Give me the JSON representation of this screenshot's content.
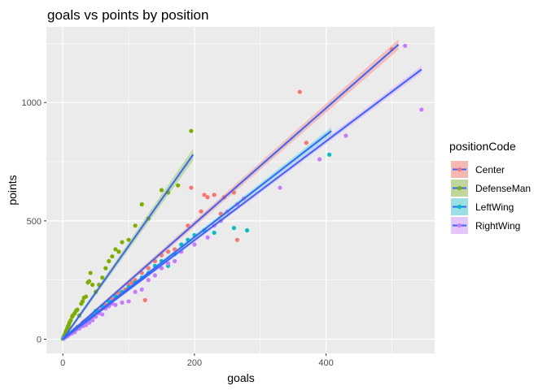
{
  "chart_data": {
    "type": "scatter",
    "title": "goals vs points by position",
    "xlabel": "goals",
    "ylabel": "points",
    "xlim": [
      -25,
      565
    ],
    "ylim": [
      -60,
      1320
    ],
    "xticks": [
      0,
      200,
      400
    ],
    "yticks": [
      0,
      500,
      1000
    ],
    "x_tick_labels": [
      "0",
      "200",
      "400"
    ],
    "y_tick_labels": [
      "0",
      "500",
      "1000"
    ],
    "grid": true,
    "background": "#ebebeb",
    "legend": {
      "title": "positionCode",
      "position": "right"
    },
    "trend_line_color": "#3366ff",
    "series": [
      {
        "name": "Center",
        "color": "#f8766d",
        "band_color": "#f5b8b2",
        "fit": {
          "x": [
            0,
            510
          ],
          "y": [
            0,
            1245
          ],
          "band": 22
        },
        "points": [
          [
            2,
            5
          ],
          [
            4,
            10
          ],
          [
            6,
            12
          ],
          [
            8,
            18
          ],
          [
            10,
            22
          ],
          [
            12,
            25
          ],
          [
            15,
            33
          ],
          [
            18,
            42
          ],
          [
            20,
            45
          ],
          [
            22,
            52
          ],
          [
            25,
            55
          ],
          [
            28,
            62
          ],
          [
            30,
            70
          ],
          [
            32,
            75
          ],
          [
            35,
            80
          ],
          [
            38,
            86
          ],
          [
            40,
            88
          ],
          [
            45,
            95
          ],
          [
            50,
            110
          ],
          [
            55,
            120
          ],
          [
            60,
            130
          ],
          [
            65,
            145
          ],
          [
            70,
            160
          ],
          [
            75,
            170
          ],
          [
            80,
            185
          ],
          [
            85,
            195
          ],
          [
            90,
            200
          ],
          [
            95,
            210
          ],
          [
            100,
            230
          ],
          [
            105,
            240
          ],
          [
            110,
            250
          ],
          [
            120,
            280
          ],
          [
            125,
            165
          ],
          [
            130,
            300
          ],
          [
            140,
            330
          ],
          [
            150,
            355
          ],
          [
            160,
            370
          ],
          [
            170,
            380
          ],
          [
            180,
            400
          ],
          [
            190,
            480
          ],
          [
            195,
            640
          ],
          [
            210,
            540
          ],
          [
            215,
            610
          ],
          [
            220,
            600
          ],
          [
            230,
            610
          ],
          [
            240,
            530
          ],
          [
            245,
            600
          ],
          [
            260,
            620
          ],
          [
            265,
            420
          ],
          [
            360,
            1045
          ],
          [
            370,
            830
          ],
          [
            500,
            1225
          ]
        ]
      },
      {
        "name": "DefenseMan",
        "color": "#7cae00",
        "band_color": "#bfd79d",
        "fit": {
          "x": [
            0,
            198
          ],
          "y": [
            0,
            780
          ],
          "band": 25
        },
        "points": [
          [
            0,
            2
          ],
          [
            1,
            8
          ],
          [
            2,
            15
          ],
          [
            3,
            20
          ],
          [
            4,
            28
          ],
          [
            5,
            35
          ],
          [
            6,
            40
          ],
          [
            7,
            48
          ],
          [
            8,
            55
          ],
          [
            9,
            60
          ],
          [
            10,
            70
          ],
          [
            12,
            80
          ],
          [
            14,
            95
          ],
          [
            15,
            100
          ],
          [
            18,
            110
          ],
          [
            20,
            120
          ],
          [
            22,
            125
          ],
          [
            25,
            100
          ],
          [
            28,
            150
          ],
          [
            30,
            160
          ],
          [
            32,
            175
          ],
          [
            35,
            180
          ],
          [
            38,
            240
          ],
          [
            40,
            245
          ],
          [
            42,
            280
          ],
          [
            45,
            230
          ],
          [
            50,
            200
          ],
          [
            55,
            230
          ],
          [
            60,
            260
          ],
          [
            65,
            300
          ],
          [
            70,
            330
          ],
          [
            75,
            350
          ],
          [
            80,
            380
          ],
          [
            85,
            370
          ],
          [
            90,
            410
          ],
          [
            100,
            420
          ],
          [
            110,
            480
          ],
          [
            120,
            570
          ],
          [
            130,
            510
          ],
          [
            150,
            630
          ],
          [
            160,
            620
          ],
          [
            175,
            650
          ],
          [
            195,
            880
          ]
        ]
      },
      {
        "name": "LeftWing",
        "color": "#00bfc4",
        "band_color": "#99dfe4",
        "fit": {
          "x": [
            0,
            408
          ],
          "y": [
            0,
            880
          ],
          "band": 15
        },
        "points": [
          [
            1,
            3
          ],
          [
            3,
            8
          ],
          [
            5,
            12
          ],
          [
            8,
            18
          ],
          [
            10,
            25
          ],
          [
            14,
            30
          ],
          [
            18,
            38
          ],
          [
            22,
            50
          ],
          [
            26,
            55
          ],
          [
            30,
            60
          ],
          [
            35,
            70
          ],
          [
            40,
            85
          ],
          [
            45,
            100
          ],
          [
            50,
            120
          ],
          [
            55,
            115
          ],
          [
            60,
            140
          ],
          [
            70,
            160
          ],
          [
            80,
            180
          ],
          [
            90,
            200
          ],
          [
            100,
            220
          ],
          [
            110,
            240
          ],
          [
            120,
            260
          ],
          [
            130,
            280
          ],
          [
            140,
            310
          ],
          [
            150,
            330
          ],
          [
            160,
            310
          ],
          [
            170,
            360
          ],
          [
            180,
            400
          ],
          [
            190,
            420
          ],
          [
            200,
            440
          ],
          [
            215,
            460
          ],
          [
            230,
            450
          ],
          [
            260,
            470
          ],
          [
            280,
            460
          ],
          [
            405,
            780
          ]
        ]
      },
      {
        "name": "RightWing",
        "color": "#c77cff",
        "band_color": "#e3c7fb",
        "fit": {
          "x": [
            0,
            545
          ],
          "y": [
            0,
            1140
          ],
          "band": 15
        },
        "points": [
          [
            2,
            4
          ],
          [
            5,
            10
          ],
          [
            8,
            15
          ],
          [
            10,
            20
          ],
          [
            14,
            25
          ],
          [
            18,
            30
          ],
          [
            20,
            40
          ],
          [
            25,
            45
          ],
          [
            30,
            55
          ],
          [
            35,
            60
          ],
          [
            40,
            70
          ],
          [
            45,
            80
          ],
          [
            50,
            95
          ],
          [
            55,
            110
          ],
          [
            60,
            105
          ],
          [
            65,
            130
          ],
          [
            70,
            140
          ],
          [
            75,
            150
          ],
          [
            80,
            145
          ],
          [
            90,
            155
          ],
          [
            100,
            160
          ],
          [
            110,
            200
          ],
          [
            120,
            210
          ],
          [
            130,
            250
          ],
          [
            140,
            270
          ],
          [
            150,
            300
          ],
          [
            160,
            320
          ],
          [
            170,
            330
          ],
          [
            180,
            370
          ],
          [
            200,
            400
          ],
          [
            220,
            430
          ],
          [
            230,
            480
          ],
          [
            240,
            500
          ],
          [
            250,
            540
          ],
          [
            265,
            570
          ],
          [
            275,
            595
          ],
          [
            330,
            640
          ],
          [
            390,
            760
          ],
          [
            430,
            860
          ],
          [
            520,
            1240
          ],
          [
            545,
            970
          ]
        ]
      }
    ]
  }
}
